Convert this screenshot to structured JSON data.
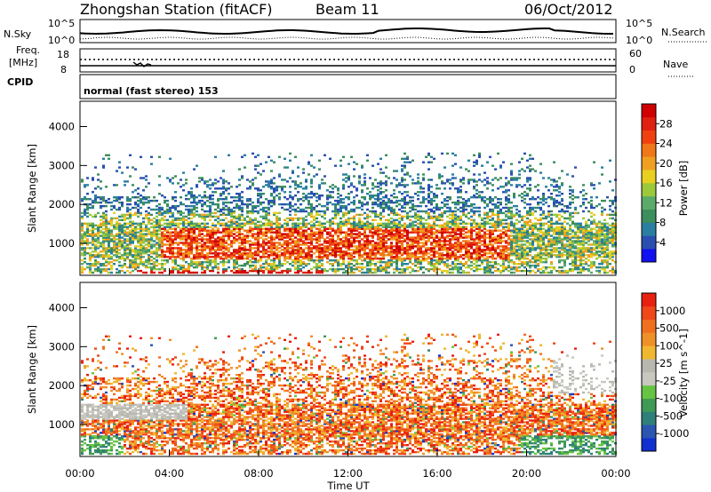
{
  "header": {
    "station": "Zhongshan Station (fitACF)",
    "beam": "Beam 11",
    "date": "06/Oct/2012"
  },
  "panels": {
    "nsky_label": "N.Sky",
    "nsky_ticks": [
      "10^5",
      "10^0"
    ],
    "nsearch_label": "N.Search",
    "nsearch_ticks": [
      "10^5",
      "10^0"
    ],
    "freq_label_1": "Freq.",
    "freq_label_2": "[MHz]",
    "freq_ticks": [
      "18",
      "8"
    ],
    "nave_label": "Nave",
    "nave_ticks": [
      "60",
      "0"
    ],
    "cpid_label": "CPID",
    "cpid_text": "normal (fast stereo) 153"
  },
  "chart_data": [
    {
      "type": "heatmap",
      "name": "power",
      "xlabel": "Time UT",
      "ylabel": "Slant Range [km]",
      "x_ticks": [
        "00:00",
        "04:00",
        "08:00",
        "12:00",
        "16:00",
        "20:00",
        "00:00"
      ],
      "y_ticks": [
        1000,
        2000,
        3000,
        4000
      ],
      "ylim": [
        180,
        4650
      ],
      "colorbar": {
        "label": "Power [dB]",
        "ticks": [
          "28",
          "24",
          "20",
          "16",
          "12",
          "8",
          "4"
        ],
        "colors": [
          "#1010f0",
          "#2a4fb0",
          "#2a7fa0",
          "#3c8e5c",
          "#5aaa6a",
          "#9cc83c",
          "#e8d020",
          "#f0a020",
          "#f07818",
          "#f04010",
          "#e02010",
          "#d00000"
        ]
      }
    },
    {
      "type": "heatmap",
      "name": "velocity",
      "xlabel": "Time UT",
      "ylabel": "Slant Range [km]",
      "x_ticks": [
        "00:00",
        "04:00",
        "08:00",
        "12:00",
        "16:00",
        "20:00",
        "00:00"
      ],
      "y_ticks": [
        1000,
        2000,
        3000,
        4000
      ],
      "ylim": [
        180,
        4650
      ],
      "colorbar": {
        "label": "Velocity [m s^-1]",
        "ticks": [
          "1000",
          "500",
          "100",
          "25",
          "-25",
          "-100",
          "-500",
          "-1000"
        ],
        "colors": [
          "#1030d0",
          "#2a55b0",
          "#2f7f7a",
          "#3f9a55",
          "#66c444",
          "#c8c8c0",
          "#b8b8b0",
          "#f0b830",
          "#f09028",
          "#f07020",
          "#f04818",
          "#e82010"
        ]
      }
    }
  ],
  "colors": {
    "frame": "#000000",
    "background": "#ffffff"
  }
}
